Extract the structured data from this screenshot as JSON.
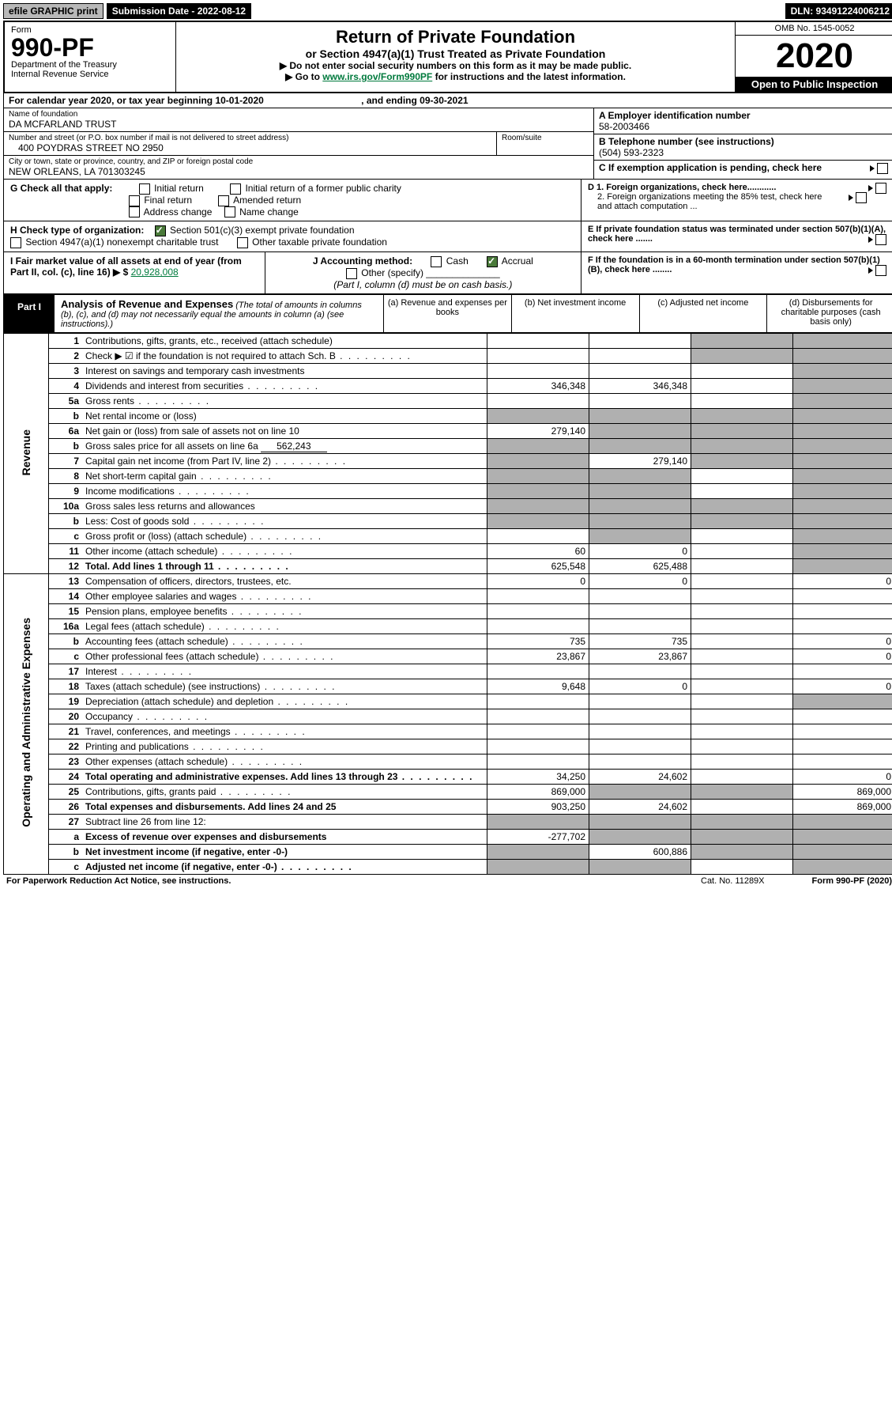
{
  "topbar": {
    "efile": "efile GRAPHIC print",
    "sub": "Submission Date - 2022-08-12",
    "dln": "DLN: 93491224006212"
  },
  "header": {
    "formLabel": "Form",
    "formNo": "990-PF",
    "dept": "Department of the Treasury",
    "irs": "Internal Revenue Service",
    "title": "Return of Private Foundation",
    "sub1": "or Section 4947(a)(1) Trust Treated as Private Foundation",
    "sub2a": "▶ Do not enter social security numbers on this form as it may be made public.",
    "sub2b": "▶ Go to ",
    "sub2link": "www.irs.gov/Form990PF",
    "sub2c": " for instructions and the latest information.",
    "omb": "OMB No. 1545-0052",
    "year": "2020",
    "open": "Open to Public Inspection"
  },
  "cal": {
    "label": "For calendar year 2020, or tax year beginning 10-01-2020",
    "end": ", and ending 09-30-2021"
  },
  "info": {
    "nameLabel": "Name of foundation",
    "name": "DA MCFARLAND TRUST",
    "addrLabel": "Number and street (or P.O. box number if mail is not delivered to street address)",
    "addr": "400 POYDRAS STREET NO 2950",
    "roomLabel": "Room/suite",
    "cityLabel": "City or town, state or province, country, and ZIP or foreign postal code",
    "city": "NEW ORLEANS, LA  701303245",
    "aLabel": "A Employer identification number",
    "a": "58-2003466",
    "bLabel": "B Telephone number (see instructions)",
    "b": "(504) 593-2323",
    "cLabel": "C If exemption application is pending, check here"
  },
  "g": {
    "label": "G Check all that apply:",
    "o1": "Initial return",
    "o2": "Initial return of a former public charity",
    "o3": "Final return",
    "o4": "Amended return",
    "o5": "Address change",
    "o6": "Name change"
  },
  "d": {
    "d1": "D 1. Foreign organizations, check here............",
    "d2": "2. Foreign organizations meeting the 85% test, check here and attach computation ..."
  },
  "h": {
    "label": "H Check type of organization:",
    "o1": "Section 501(c)(3) exempt private foundation",
    "o2": "Section 4947(a)(1) nonexempt charitable trust",
    "o3": "Other taxable private foundation"
  },
  "e": "E If private foundation status was terminated under section 507(b)(1)(A), check here .......",
  "i": {
    "label": "I Fair market value of all assets at end of year (from Part II, col. (c), line 16) ▶ $ ",
    "amount": "20,928,008"
  },
  "j": {
    "label": "J Accounting method:",
    "o1": "Cash",
    "o2": "Accrual",
    "o3": "Other (specify)",
    "note": "(Part I, column (d) must be on cash basis.)"
  },
  "f": "F If the foundation is in a 60-month termination under section 507(b)(1)(B), check here ........",
  "part1": {
    "label": "Part I",
    "title": "Analysis of Revenue and Expenses",
    "desc": "(The total of amounts in columns (b), (c), and (d) may not necessarily equal the amounts in column (a) (see instructions).)",
    "colA": "(a) Revenue and expenses per books",
    "colB": "(b) Net investment income",
    "colC": "(c) Adjusted net income",
    "colD": "(d) Disbursements for charitable purposes (cash basis only)"
  },
  "sides": {
    "rev": "Revenue",
    "exp": "Operating and Administrative Expenses"
  },
  "rows": [
    {
      "n": "1",
      "d": "Contributions, gifts, grants, etc., received (attach schedule)",
      "a": "",
      "b": "",
      "c": "s",
      "ds": "s"
    },
    {
      "n": "2",
      "d": "Check ▶ ☑ if the foundation is not required to attach Sch. B",
      "dots": true,
      "a": "",
      "b": "",
      "c": "s",
      "ds": "s"
    },
    {
      "n": "3",
      "d": "Interest on savings and temporary cash investments",
      "a": "",
      "b": "",
      "c": "",
      "ds": "s"
    },
    {
      "n": "4",
      "d": "Dividends and interest from securities",
      "dots": true,
      "a": "346,348",
      "b": "346,348",
      "c": "",
      "ds": "s"
    },
    {
      "n": "5a",
      "d": "Gross rents",
      "dots": true,
      "a": "",
      "b": "",
      "c": "",
      "ds": "s"
    },
    {
      "n": "b",
      "d": "Net rental income or (loss)",
      "a": "s",
      "b": "s",
      "c": "s",
      "ds": "s"
    },
    {
      "n": "6a",
      "d": "Net gain or (loss) from sale of assets not on line 10",
      "a": "279,140",
      "b": "s",
      "c": "s",
      "ds": "s"
    },
    {
      "n": "b",
      "d": "Gross sales price for all assets on line 6a",
      "inline": "562,243",
      "a": "s",
      "b": "s",
      "c": "s",
      "ds": "s"
    },
    {
      "n": "7",
      "d": "Capital gain net income (from Part IV, line 2)",
      "dots": true,
      "a": "s",
      "b": "279,140",
      "c": "s",
      "ds": "s"
    },
    {
      "n": "8",
      "d": "Net short-term capital gain",
      "dots": true,
      "a": "s",
      "b": "s",
      "c": "",
      "ds": "s"
    },
    {
      "n": "9",
      "d": "Income modifications",
      "dots": true,
      "a": "s",
      "b": "s",
      "c": "",
      "ds": "s"
    },
    {
      "n": "10a",
      "d": "Gross sales less returns and allowances",
      "a": "s",
      "b": "s",
      "c": "s",
      "ds": "s"
    },
    {
      "n": "b",
      "d": "Less: Cost of goods sold",
      "dots": true,
      "a": "s",
      "b": "s",
      "c": "s",
      "ds": "s"
    },
    {
      "n": "c",
      "d": "Gross profit or (loss) (attach schedule)",
      "dots": true,
      "a": "",
      "b": "s",
      "c": "",
      "ds": "s"
    },
    {
      "n": "11",
      "d": "Other income (attach schedule)",
      "dots": true,
      "a": "60",
      "b": "0",
      "c": "",
      "ds": "s"
    },
    {
      "n": "12",
      "d": "Total. Add lines 1 through 11",
      "bold": true,
      "dots": true,
      "a": "625,548",
      "b": "625,488",
      "c": "",
      "ds": "s"
    }
  ],
  "exprows": [
    {
      "n": "13",
      "d": "Compensation of officers, directors, trustees, etc.",
      "a": "0",
      "b": "0",
      "c": "",
      "ds": "0"
    },
    {
      "n": "14",
      "d": "Other employee salaries and wages",
      "dots": true,
      "a": "",
      "b": "",
      "c": "",
      "ds": ""
    },
    {
      "n": "15",
      "d": "Pension plans, employee benefits",
      "dots": true,
      "a": "",
      "b": "",
      "c": "",
      "ds": ""
    },
    {
      "n": "16a",
      "d": "Legal fees (attach schedule)",
      "dots": true,
      "a": "",
      "b": "",
      "c": "",
      "ds": ""
    },
    {
      "n": "b",
      "d": "Accounting fees (attach schedule)",
      "dots": true,
      "a": "735",
      "b": "735",
      "c": "",
      "ds": "0"
    },
    {
      "n": "c",
      "d": "Other professional fees (attach schedule)",
      "dots": true,
      "a": "23,867",
      "b": "23,867",
      "c": "",
      "ds": "0"
    },
    {
      "n": "17",
      "d": "Interest",
      "dots": true,
      "a": "",
      "b": "",
      "c": "",
      "ds": ""
    },
    {
      "n": "18",
      "d": "Taxes (attach schedule) (see instructions)",
      "dots": true,
      "a": "9,648",
      "b": "0",
      "c": "",
      "ds": "0"
    },
    {
      "n": "19",
      "d": "Depreciation (attach schedule) and depletion",
      "dots": true,
      "a": "",
      "b": "",
      "c": "",
      "ds": "s"
    },
    {
      "n": "20",
      "d": "Occupancy",
      "dots": true,
      "a": "",
      "b": "",
      "c": "",
      "ds": ""
    },
    {
      "n": "21",
      "d": "Travel, conferences, and meetings",
      "dots": true,
      "a": "",
      "b": "",
      "c": "",
      "ds": ""
    },
    {
      "n": "22",
      "d": "Printing and publications",
      "dots": true,
      "a": "",
      "b": "",
      "c": "",
      "ds": ""
    },
    {
      "n": "23",
      "d": "Other expenses (attach schedule)",
      "dots": true,
      "a": "",
      "b": "",
      "c": "",
      "ds": ""
    },
    {
      "n": "24",
      "d": "Total operating and administrative expenses. Add lines 13 through 23",
      "bold": true,
      "dots": true,
      "a": "34,250",
      "b": "24,602",
      "c": "",
      "ds": "0"
    },
    {
      "n": "25",
      "d": "Contributions, gifts, grants paid",
      "dots": true,
      "a": "869,000",
      "b": "s",
      "c": "s",
      "ds": "869,000"
    },
    {
      "n": "26",
      "d": "Total expenses and disbursements. Add lines 24 and 25",
      "bold": true,
      "a": "903,250",
      "b": "24,602",
      "c": "",
      "ds": "869,000"
    },
    {
      "n": "27",
      "d": "Subtract line 26 from line 12:",
      "a": "s",
      "b": "s",
      "c": "s",
      "ds": "s"
    },
    {
      "n": "a",
      "d": "Excess of revenue over expenses and disbursements",
      "bold": true,
      "a": "-277,702",
      "b": "s",
      "c": "s",
      "ds": "s"
    },
    {
      "n": "b",
      "d": "Net investment income (if negative, enter -0-)",
      "bold": true,
      "a": "s",
      "b": "600,886",
      "c": "s",
      "ds": "s"
    },
    {
      "n": "c",
      "d": "Adjusted net income (if negative, enter -0-)",
      "bold": true,
      "dots": true,
      "a": "s",
      "b": "s",
      "c": "",
      "ds": "s"
    }
  ],
  "footer": {
    "pra": "For Paperwork Reduction Act Notice, see instructions.",
    "cat": "Cat. No. 11289X",
    "form": "Form 990-PF (2020)"
  }
}
